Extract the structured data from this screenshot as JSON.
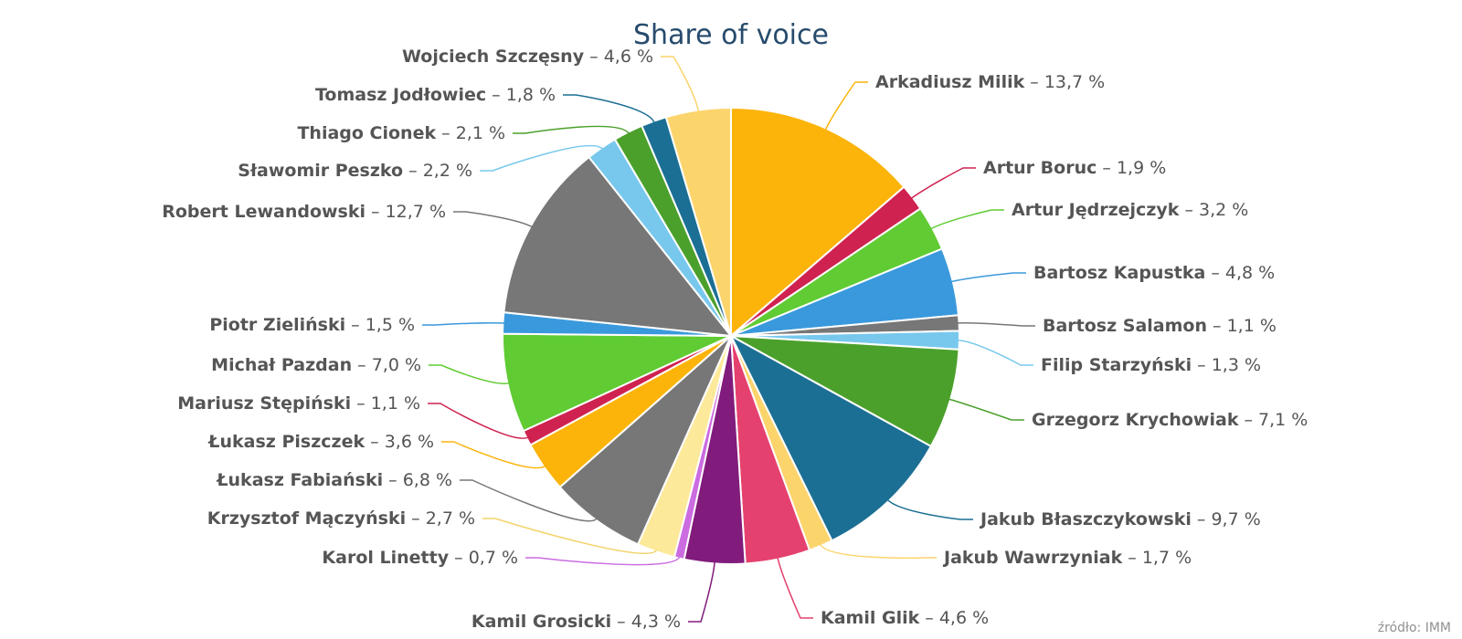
{
  "chart_data": {
    "type": "pie",
    "title": "Share of voice",
    "source": "źródło: IMM",
    "unit": "%",
    "slices": [
      {
        "name": "Arkadiusz Milik",
        "value": 13.7,
        "label": "13,7",
        "color": "#fcb40b"
      },
      {
        "name": "Artur Boruc",
        "value": 1.9,
        "label": "1,9",
        "color": "#cf2250"
      },
      {
        "name": "Artur Jędrzejczyk",
        "value": 3.2,
        "label": "3,2",
        "color": "#60cb33"
      },
      {
        "name": "Bartosz Kapustka",
        "value": 4.8,
        "label": "4,8",
        "color": "#3a99dc"
      },
      {
        "name": "Bartosz Salamon",
        "value": 1.1,
        "label": "1,1",
        "color": "#777777"
      },
      {
        "name": "Filip Starzyński",
        "value": 1.3,
        "label": "1,3",
        "color": "#78c8ed"
      },
      {
        "name": "Grzegorz Krychowiak",
        "value": 7.1,
        "label": "7,1",
        "color": "#4ba02b"
      },
      {
        "name": "Jakub Błaszczykowski",
        "value": 9.7,
        "label": "9,7",
        "color": "#1c6f94"
      },
      {
        "name": "Jakub Wawrzyniak",
        "value": 1.7,
        "label": "1,7",
        "color": "#fcd46c"
      },
      {
        "name": "Kamil Glik",
        "value": 4.6,
        "label": "4,6",
        "color": "#e5416e"
      },
      {
        "name": "Kamil Grosicki",
        "value": 4.3,
        "label": "4,3",
        "color": "#811b7c"
      },
      {
        "name": "Karol Linetty",
        "value": 0.7,
        "label": "0,7",
        "color": "#cb6ce0"
      },
      {
        "name": "Krzysztof Mączyński",
        "value": 2.7,
        "label": "2,7",
        "color": "#fde99a"
      },
      {
        "name": "Łukasz Fabiański",
        "value": 6.8,
        "label": "6,8",
        "color": "#777777"
      },
      {
        "name": "Łukasz Piszczek",
        "value": 3.6,
        "label": "3,6",
        "color": "#fcb40b"
      },
      {
        "name": "Mariusz Stępiński",
        "value": 1.1,
        "label": "1,1",
        "color": "#cf2250"
      },
      {
        "name": "Michał Pazdan",
        "value": 7.0,
        "label": "7,0",
        "color": "#60cb33"
      },
      {
        "name": "Piotr Zieliński",
        "value": 1.5,
        "label": "1,5",
        "color": "#3a99dc"
      },
      {
        "name": "Robert Lewandowski",
        "value": 12.7,
        "label": "12,7",
        "color": "#777777"
      },
      {
        "name": "Sławomir Peszko",
        "value": 2.2,
        "label": "2,2",
        "color": "#78c8ed"
      },
      {
        "name": "Thiago Cionek",
        "value": 2.1,
        "label": "2,1",
        "color": "#4ba02b"
      },
      {
        "name": "Tomasz Jodłowiec",
        "value": 1.8,
        "label": "1,8",
        "color": "#1c6f94"
      },
      {
        "name": "Wojciech Szczęsny",
        "value": 4.6,
        "label": "4,6",
        "color": "#fcd46c"
      }
    ]
  }
}
